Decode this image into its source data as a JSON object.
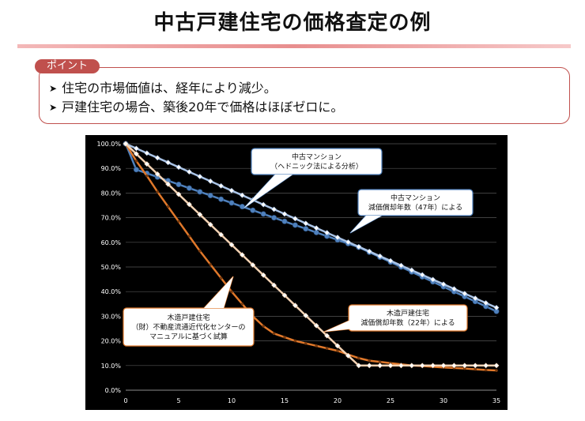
{
  "page": {
    "title": "中古戸建住宅の価格査定の例",
    "point_label": "ポイント",
    "bullets": [
      "住宅の市場価値は、経年により減少。",
      "戸建住宅の場合、築後20年で価格はほぼゼロに。"
    ]
  },
  "colors": {
    "accent_red": "#c0504d",
    "chart_bg": "#000000",
    "blue_series": "#4f81bd",
    "light_blue_series": "#a9c3e6",
    "orange_series": "#e0782a",
    "light_orange_series": "#f3d2b3"
  },
  "chart_data": {
    "type": "line",
    "x_ticks": [
      "0",
      "5",
      "10",
      "15",
      "20",
      "25",
      "30",
      "35"
    ],
    "y_ticks": [
      "0.0%",
      "10.0%",
      "20.0%",
      "30.0%",
      "40.0%",
      "50.0%",
      "60.0%",
      "70.0%",
      "80.0%",
      "90.0%",
      "100.0%"
    ],
    "xlim": [
      0,
      35
    ],
    "ylim": [
      0,
      100
    ],
    "grid": true,
    "series": [
      {
        "key": "mansion_hedonic",
        "color": "#4f81bd",
        "x": [
          0,
          1,
          2,
          3,
          4,
          5,
          6,
          7,
          8,
          9,
          10,
          11,
          12,
          13,
          14,
          15,
          16,
          17,
          18,
          19,
          20,
          21,
          22,
          23,
          24,
          25,
          26,
          27,
          28,
          29,
          30,
          31,
          32,
          33,
          34,
          35
        ],
        "y": [
          100,
          89.5,
          88,
          86.5,
          85,
          83.5,
          82,
          80.5,
          79,
          77.5,
          76,
          74.5,
          73,
          71.5,
          70,
          68.5,
          67,
          65.5,
          64,
          62.5,
          61,
          59.5,
          58,
          56,
          54,
          52,
          50,
          48,
          46,
          44,
          42,
          40,
          38,
          36,
          34,
          32
        ]
      },
      {
        "key": "mansion_depreciation_47",
        "color": "#a9c3e6",
        "x": [
          0,
          1,
          2,
          3,
          4,
          5,
          6,
          7,
          8,
          9,
          10,
          11,
          12,
          13,
          14,
          15,
          16,
          17,
          18,
          19,
          20,
          21,
          22,
          23,
          24,
          25,
          26,
          27,
          28,
          29,
          30,
          31,
          32,
          33,
          34,
          35
        ],
        "y": [
          100,
          98.1,
          96.2,
          94.3,
          92.4,
          90.5,
          88.6,
          86.7,
          84.8,
          82.9,
          81,
          79.1,
          77.2,
          75.3,
          73.4,
          71.5,
          69.6,
          67.7,
          65.8,
          63.9,
          62,
          60.1,
          58.2,
          56.3,
          54.4,
          52.5,
          50.6,
          48.7,
          46.8,
          44.9,
          43,
          41.1,
          39.2,
          37.3,
          35.4,
          33.5
        ]
      },
      {
        "key": "wooden_manual",
        "color": "#e0782a",
        "x": [
          0,
          1,
          2,
          3,
          4,
          5,
          6,
          7,
          8,
          9,
          10,
          11,
          12,
          13,
          14,
          15,
          16,
          17,
          18,
          19,
          20,
          21,
          22,
          23,
          24,
          25,
          26,
          27,
          28,
          29,
          30,
          31,
          32,
          33,
          34,
          35
        ],
        "y": [
          100,
          93,
          87,
          80.5,
          74.5,
          68.5,
          62.5,
          56.5,
          51,
          45.5,
          40,
          35,
          30,
          26,
          23,
          21.5,
          20,
          19,
          18,
          17,
          16,
          14.5,
          13,
          12,
          11.5,
          11,
          10.5,
          10,
          9.8,
          9.5,
          9.2,
          9,
          8.8,
          8.5,
          8.2,
          8
        ]
      },
      {
        "key": "wooden_depreciation_22",
        "color": "#f3d2b3",
        "x": [
          0,
          1,
          2,
          3,
          4,
          5,
          6,
          7,
          8,
          9,
          10,
          11,
          12,
          13,
          14,
          15,
          16,
          17,
          18,
          19,
          20,
          21,
          22,
          23,
          24,
          25,
          26,
          27,
          28,
          29,
          30,
          31,
          32,
          33,
          34,
          35
        ],
        "y": [
          100,
          95.9,
          91.8,
          87.7,
          83.6,
          79.5,
          75.4,
          71.3,
          67.2,
          63.1,
          59,
          54.9,
          50.8,
          46.7,
          42.6,
          38.5,
          34.4,
          30.3,
          26.2,
          22.1,
          18,
          14,
          10,
          10,
          10,
          10,
          10,
          10,
          10,
          10,
          10,
          10,
          10,
          10,
          10,
          10
        ]
      }
    ],
    "annotations": {
      "mansion_hedonic": [
        "中古マンション",
        "（ヘドニック法による分析）"
      ],
      "mansion_depreciation_47": [
        "中古マンション",
        "減価償却年数（47年）による"
      ],
      "wooden_manual": [
        "木造戸建住宅",
        "（財）不動産流通近代化センターの",
        "マニュアルに基づく試算"
      ],
      "wooden_depreciation_22": [
        "木造戸建住宅",
        "減価償却年数（22年）による"
      ]
    }
  }
}
